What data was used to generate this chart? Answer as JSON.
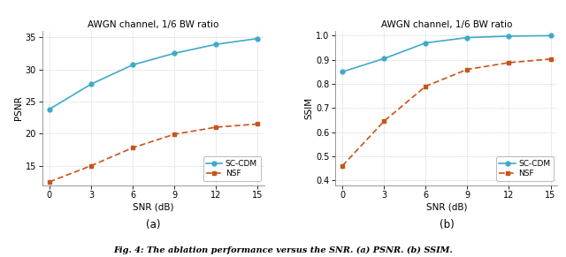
{
  "snr": [
    0,
    3,
    6,
    9,
    12,
    15
  ],
  "psnr_scdm": [
    23.8,
    27.7,
    30.7,
    32.5,
    33.9,
    34.8
  ],
  "psnr_nsf": [
    12.5,
    15.0,
    17.8,
    19.9,
    21.0,
    21.5
  ],
  "ssim_scdm": [
    0.85,
    0.905,
    0.97,
    0.992,
    0.998,
    1.0
  ],
  "ssim_nsf": [
    0.46,
    0.645,
    0.79,
    0.86,
    0.888,
    0.903
  ],
  "title": "AWGN channel, 1/6 BW ratio",
  "xlabel": "SNR (dB)",
  "ylabel_a": "PSNR",
  "ylabel_b": "SSIM",
  "label_a": "(a)",
  "label_b": "(b)",
  "legend_scdm": "SC-CDM",
  "legend_nsf": "NSF",
  "color_scdm": "#3fa9c8",
  "color_nsf": "#c8541a",
  "psnr_ylim": [
    12,
    36
  ],
  "psnr_yticks": [
    15,
    20,
    25,
    30,
    35
  ],
  "ssim_ylim": [
    0.38,
    1.02
  ],
  "ssim_yticks": [
    0.4,
    0.5,
    0.6,
    0.7,
    0.8,
    0.9,
    1.0
  ],
  "xticks": [
    0,
    3,
    6,
    9,
    12,
    15
  ],
  "caption": "Fig. 4: The ablation performance versus the SNR. (a) PSNR. (b) SSIM.",
  "title_fontsize": 7.5,
  "axis_fontsize": 7.5,
  "tick_fontsize": 7,
  "legend_fontsize": 6.5,
  "caption_fontsize": 7
}
